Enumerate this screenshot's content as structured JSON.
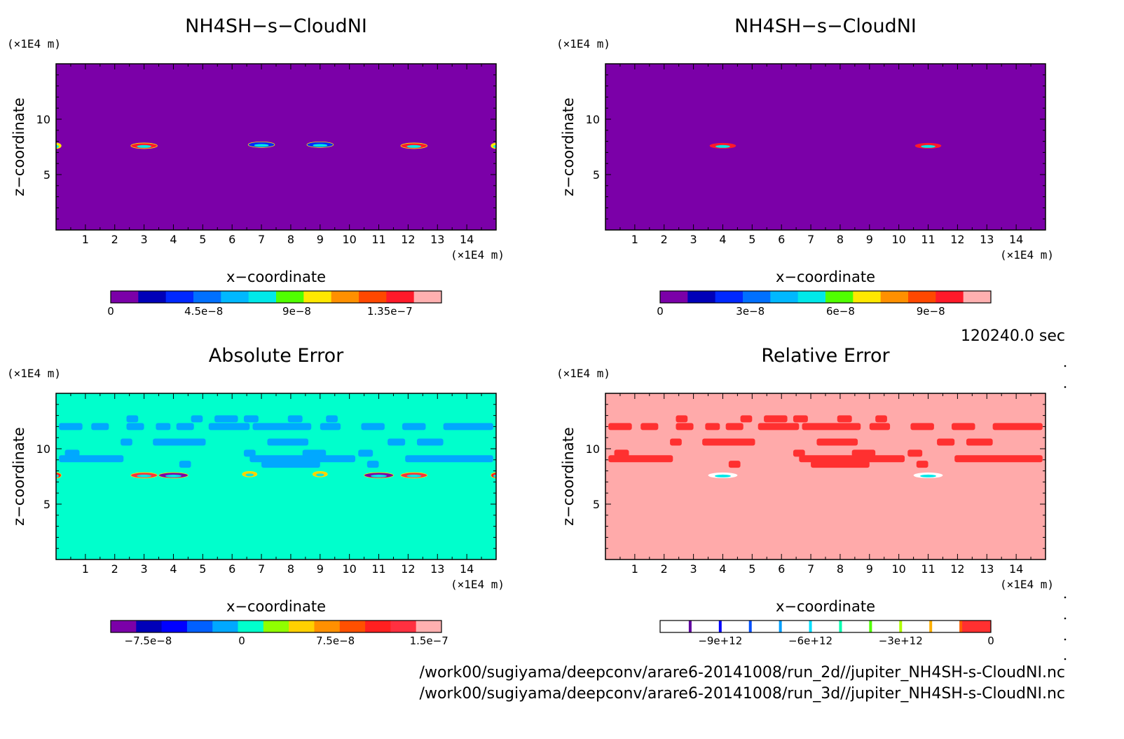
{
  "time_label": "120240.0 sec",
  "footer": {
    "file_2d": "/work00/sugiyama/deepconv/arare6-20141008/run_2d//jupiter_NH4SH-s-CloudNI.nc",
    "file_3d": "/work00/sugiyama/deepconv/arare6-20141008/run_3d//jupiter_NH4SH-s-CloudNI.nc"
  },
  "chart_data": [
    {
      "type": "heatmap",
      "title": "NH4SH−s−CloudNI",
      "xlabel": "x−coordinate",
      "ylabel": "z−coordinate",
      "x_unit": "(×1E4 m)",
      "y_unit": "(×1E4 m)",
      "xlim": [
        0,
        15
      ],
      "ylim": [
        0,
        15
      ],
      "x_ticks": [
        1,
        2,
        3,
        4,
        5,
        6,
        7,
        8,
        9,
        10,
        11,
        12,
        13,
        14
      ],
      "y_ticks": [
        5,
        10
      ],
      "background_color": "#7b00a8",
      "colorbar": {
        "colors": [
          "#7b00a8",
          "#0000b8",
          "#0028ff",
          "#0070ff",
          "#00b8ff",
          "#00e8e8",
          "#50ff00",
          "#ffe800",
          "#ff9000",
          "#ff4800",
          "#ff1a2a",
          "#ffb0b0"
        ],
        "labels": [
          "0",
          "4.5e−8",
          "9e−8",
          "1.35e−7"
        ],
        "label_values": [
          0,
          4.5e-08,
          9e-08,
          1.35e-07
        ],
        "range": [
          0,
          1.6e-07
        ]
      },
      "features": [
        {
          "x": 0.0,
          "z": 7.6,
          "w": 0.35,
          "value": 1e-07
        },
        {
          "x": 3.0,
          "z": 7.6,
          "w": 0.9,
          "value": 1.45e-07
        },
        {
          "x": 7.0,
          "z": 7.7,
          "w": 0.9,
          "value": 3e-08
        },
        {
          "x": 9.0,
          "z": 7.7,
          "w": 0.9,
          "value": 3e-08
        },
        {
          "x": 12.2,
          "z": 7.6,
          "w": 0.9,
          "value": 1.45e-07
        },
        {
          "x": 15.0,
          "z": 7.6,
          "w": 0.35,
          "value": 1e-07
        }
      ]
    },
    {
      "type": "heatmap",
      "title": "NH4SH−s−CloudNI",
      "xlabel": "x−coordinate",
      "ylabel": "z−coordinate",
      "x_unit": "(×1E4 m)",
      "y_unit": "(×1E4 m)",
      "xlim": [
        0,
        15
      ],
      "ylim": [
        0,
        15
      ],
      "x_ticks": [
        1,
        2,
        3,
        4,
        5,
        6,
        7,
        8,
        9,
        10,
        11,
        12,
        13,
        14
      ],
      "y_ticks": [
        5,
        10
      ],
      "background_color": "#7b00a8",
      "colorbar": {
        "colors": [
          "#7b00a8",
          "#0000b8",
          "#0028ff",
          "#0070ff",
          "#00b8ff",
          "#00e8e8",
          "#50ff00",
          "#ffe800",
          "#ff9000",
          "#ff4800",
          "#ff1a2a",
          "#ffb0b0"
        ],
        "labels": [
          "0",
          "3e−8",
          "6e−8",
          "9e−8"
        ],
        "label_values": [
          0,
          3e-08,
          6e-08,
          9e-08
        ],
        "range": [
          0,
          1.1e-07
        ]
      },
      "features": [
        {
          "x": 4.0,
          "z": 7.6,
          "w": 0.9,
          "value": 1e-07
        },
        {
          "x": 11.0,
          "z": 7.6,
          "w": 0.9,
          "value": 1e-07
        }
      ]
    },
    {
      "type": "heatmap",
      "title": "Absolute Error",
      "xlabel": "x−coordinate",
      "ylabel": "z−coordinate",
      "x_unit": "(×1E4 m)",
      "y_unit": "(×1E4 m)",
      "xlim": [
        0,
        15
      ],
      "ylim": [
        0,
        15
      ],
      "x_ticks": [
        1,
        2,
        3,
        4,
        5,
        6,
        7,
        8,
        9,
        10,
        11,
        12,
        13,
        14
      ],
      "y_ticks": [
        5,
        10
      ],
      "background_color": "#00ffcc",
      "colorbar": {
        "colors": [
          "#7b00a8",
          "#0000b8",
          "#0000ff",
          "#0060ff",
          "#00a8ff",
          "#00ffcc",
          "#90ff00",
          "#ffd000",
          "#ff9000",
          "#ff5000",
          "#ff2020",
          "#ff3040",
          "#ffb0b0"
        ],
        "labels": [
          "−7.5e−8",
          "0",
          "7.5e−8",
          "1.5e−7"
        ],
        "label_values": [
          -7.5e-08,
          0,
          7.5e-08,
          1.5e-07
        ],
        "range": [
          -1.05e-07,
          1.6e-07
        ]
      },
      "features": [
        {
          "x": 0.0,
          "z": 7.6,
          "w": 0.35,
          "value": 1e-07
        },
        {
          "x": 3.0,
          "z": 7.6,
          "w": 0.9,
          "value": 1.2e-07
        },
        {
          "x": 4.0,
          "z": 7.6,
          "w": 1.0,
          "value": -9e-08
        },
        {
          "x": 6.6,
          "z": 7.7,
          "w": 0.5,
          "value": 4e-08
        },
        {
          "x": 9.0,
          "z": 7.7,
          "w": 0.5,
          "value": 4e-08
        },
        {
          "x": 11.0,
          "z": 7.6,
          "w": 1.0,
          "value": -9e-08
        },
        {
          "x": 12.2,
          "z": 7.6,
          "w": 0.9,
          "value": 1.2e-07
        },
        {
          "x": 15.0,
          "z": 7.6,
          "w": 0.35,
          "value": 1e-07
        }
      ]
    },
    {
      "type": "heatmap",
      "title": "Relative Error",
      "xlabel": "x−coordinate",
      "ylabel": "z−coordinate",
      "x_unit": "(×1E4 m)",
      "y_unit": "(×1E4 m)",
      "xlim": [
        0,
        15
      ],
      "ylim": [
        0,
        15
      ],
      "x_ticks": [
        1,
        2,
        3,
        4,
        5,
        6,
        7,
        8,
        9,
        10,
        11,
        12,
        13,
        14
      ],
      "y_ticks": [
        5,
        10
      ],
      "background_color": "#ffaaaa",
      "colorbar": {
        "colors": [
          "#ffffff",
          "#ffffff",
          "#ffffff",
          "#ffffff",
          "#ffffff",
          "#ffffff",
          "#ffffff",
          "#ffffff",
          "#ffffff",
          "#ffffff",
          "#ff3030"
        ],
        "boundary_colors": [
          "#6000a0",
          "#0000ff",
          "#0050ff",
          "#00a0ff",
          "#00e0ff",
          "#00ffb0",
          "#50ff00",
          "#b0ff00",
          "#ffb000",
          "#ff6000"
        ],
        "labels": [
          "−9e+12",
          "−6e+12",
          "−3e+12",
          "0"
        ],
        "label_values": [
          -9000000000000.0,
          -6000000000000.0,
          -3000000000000.0,
          0
        ],
        "range": [
          -11000000000000.0,
          0
        ]
      },
      "features": [
        {
          "x": 4.0,
          "z": 7.6,
          "w": 1.0,
          "value": -10000000000000.0
        },
        {
          "x": 11.0,
          "z": 7.6,
          "w": 1.0,
          "value": -10000000000000.0
        }
      ]
    }
  ]
}
